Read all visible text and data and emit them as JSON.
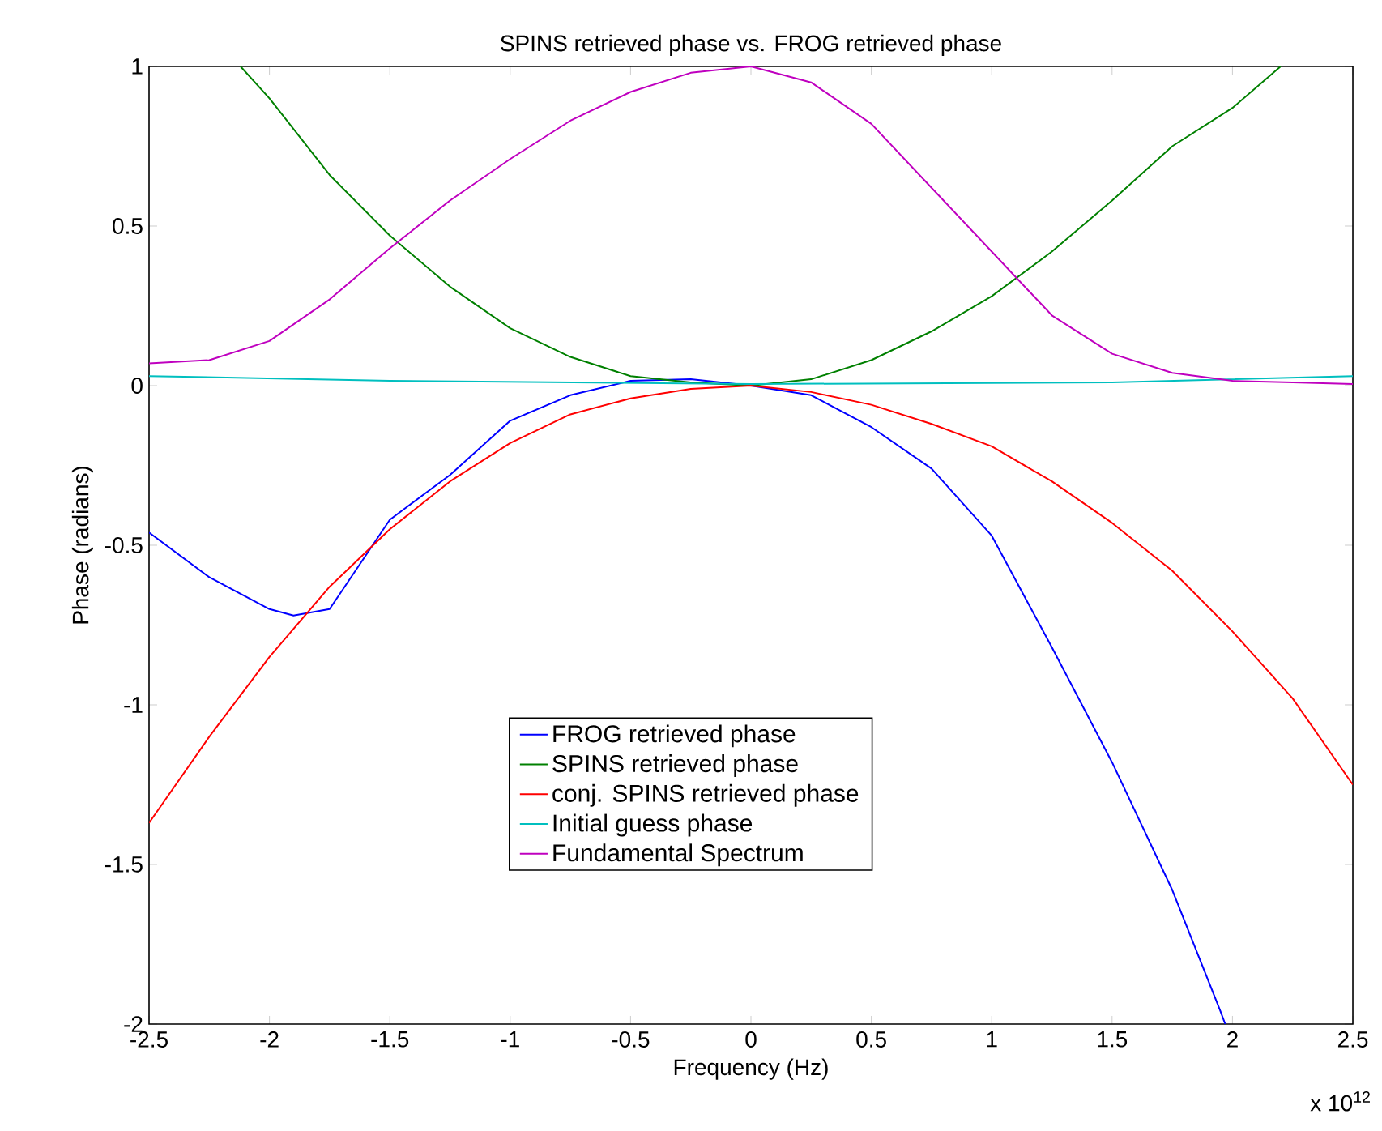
{
  "chart_data": {
    "type": "line",
    "title": "SPINS retrieved phase vs. FROG retrieved phase",
    "xlabel": "Frequency (Hz)",
    "ylabel": "Phase (radians)",
    "annotations": [
      "x 10$^{12}$"
    ],
    "xlim": [
      -2.5,
      2.5
    ],
    "ylim": [
      -2,
      1
    ],
    "xticks": [
      -2.5,
      -2,
      -1.5,
      -1,
      -0.5,
      0,
      0.5,
      1,
      1.5,
      2,
      2.5
    ],
    "yticks": [
      -2,
      -1.5,
      -1,
      -0.5,
      0,
      0.5,
      1
    ],
    "grid": false,
    "legend": "bottom",
    "marker": "none",
    "line_style": "solid",
    "series": [
      {
        "name": "FROG retrieved phase",
        "color": "#0000ff",
        "x": [
          -2.5,
          -2.25,
          -2,
          -1.9,
          -1.75,
          -1.5,
          -1.25,
          -1,
          -0.75,
          -0.5,
          -0.25,
          0,
          0.25,
          0.5,
          0.75,
          1,
          1.25,
          1.5,
          1.75,
          1.95,
          1.97
        ],
        "values": [
          -0.46,
          -0.6,
          -0.7,
          -0.72,
          -0.7,
          -0.42,
          -0.28,
          -0.11,
          -0.03,
          0.015,
          0.02,
          0,
          -0.03,
          -0.13,
          -0.26,
          -0.47,
          -0.82,
          -1.18,
          -1.58,
          -1.96,
          -2
        ]
      },
      {
        "name": "SPINS retrieved phase",
        "color": "#008000",
        "x": [
          -2.12,
          -2,
          -1.75,
          -1.5,
          -1.25,
          -1,
          -0.75,
          -0.5,
          -0.25,
          0,
          0.25,
          0.5,
          0.75,
          1,
          1.25,
          1.5,
          1.75,
          2,
          2.2
        ],
        "values": [
          1,
          0.9,
          0.66,
          0.47,
          0.31,
          0.18,
          0.09,
          0.03,
          0.01,
          0,
          0.02,
          0.08,
          0.17,
          0.28,
          0.42,
          0.58,
          0.75,
          0.87,
          1
        ]
      },
      {
        "name": "conj. SPINS retrieved phase",
        "color": "#ff0000",
        "x": [
          -2.5,
          -2.25,
          -2,
          -1.75,
          -1.5,
          -1.25,
          -1,
          -0.75,
          -0.5,
          -0.25,
          0,
          0.25,
          0.5,
          0.75,
          1,
          1.25,
          1.5,
          1.75,
          2,
          2.25,
          2.5
        ],
        "values": [
          -1.37,
          -1.1,
          -0.85,
          -0.63,
          -0.45,
          -0.3,
          -0.18,
          -0.09,
          -0.04,
          -0.01,
          0,
          -0.02,
          -0.06,
          -0.12,
          -0.19,
          -0.3,
          -0.43,
          -0.58,
          -0.77,
          -0.98,
          -1.25
        ]
      },
      {
        "name": "Initial guess phase",
        "color": "#00bfbf",
        "x": [
          -2.5,
          -1.5,
          0,
          1.5,
          2.5
        ],
        "values": [
          0.03,
          0.015,
          0.005,
          0.01,
          0.03
        ]
      },
      {
        "name": "Fundamental Spectrum",
        "color": "#bf00bf",
        "x": [
          -2.5,
          -2.25,
          -2,
          -1.75,
          -1.5,
          -1.25,
          -1,
          -0.75,
          -0.5,
          -0.25,
          0,
          0.25,
          0.5,
          0.75,
          1,
          1.25,
          1.5,
          1.75,
          2,
          2.25,
          2.5
        ],
        "values": [
          0.07,
          0.08,
          0.14,
          0.27,
          0.43,
          0.58,
          0.71,
          0.83,
          0.92,
          0.98,
          1,
          0.95,
          0.82,
          0.62,
          0.42,
          0.22,
          0.1,
          0.04,
          0.015,
          0.01,
          0.005
        ]
      }
    ]
  }
}
